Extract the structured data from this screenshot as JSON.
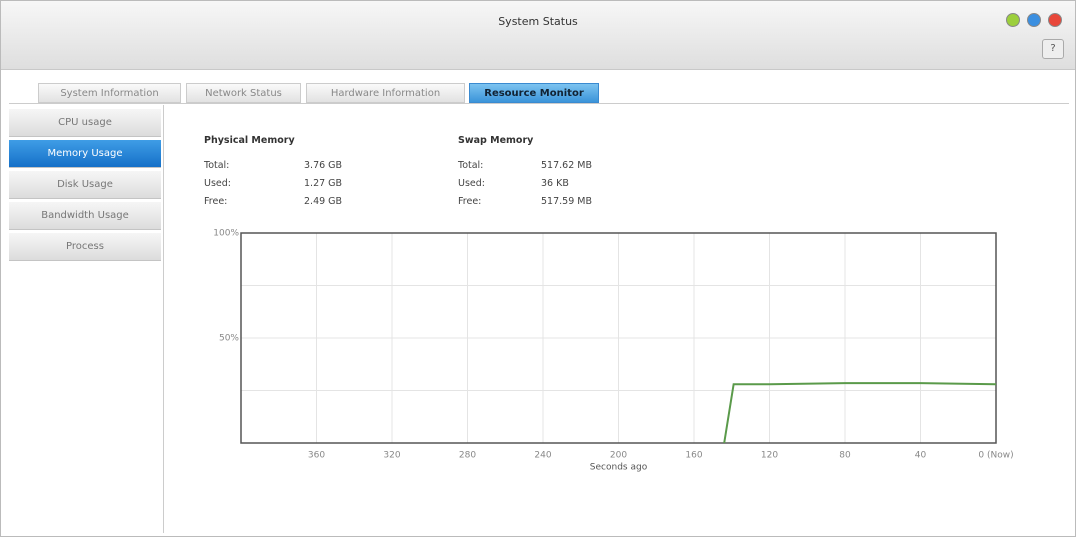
{
  "window": {
    "title": "System Status",
    "help": "?"
  },
  "tabs": [
    "System Information",
    "Network Status",
    "Hardware Information",
    "Resource Monitor"
  ],
  "active_tab": 3,
  "sidebar": [
    "CPU usage",
    "Memory Usage",
    "Disk Usage",
    "Bandwidth Usage",
    "Process"
  ],
  "active_item": 1,
  "physical_memory": {
    "title": "Physical Memory",
    "rows": [
      [
        "Total:",
        "3.76 GB"
      ],
      [
        "Used:",
        "1.27 GB"
      ],
      [
        "Free:",
        "2.49 GB"
      ]
    ]
  },
  "swap_memory": {
    "title": "Swap Memory",
    "rows": [
      [
        "Total:",
        "517.62 MB"
      ],
      [
        "Used:",
        "36 KB"
      ],
      [
        "Free:",
        "517.59 MB"
      ]
    ]
  },
  "chart": {
    "type": "line",
    "x_label": "Seconds ago",
    "x": [
      144,
      139,
      120,
      80,
      40,
      0
    ],
    "values": [
      0,
      28,
      28,
      28.5,
      28.5,
      28
    ],
    "color": "#5a9a4a",
    "xlim": [
      400,
      0
    ],
    "ylim": [
      0,
      100
    ],
    "xticks": [
      360,
      320,
      280,
      240,
      200,
      160,
      120,
      80,
      40,
      {
        "value": 0,
        "label": "0 (Now)"
      }
    ],
    "yticks": [
      {
        "value": 100,
        "label": "100%"
      },
      {
        "value": 50,
        "label": "50%"
      }
    ],
    "ygrid": [
      25,
      75
    ],
    "grid": true
  }
}
